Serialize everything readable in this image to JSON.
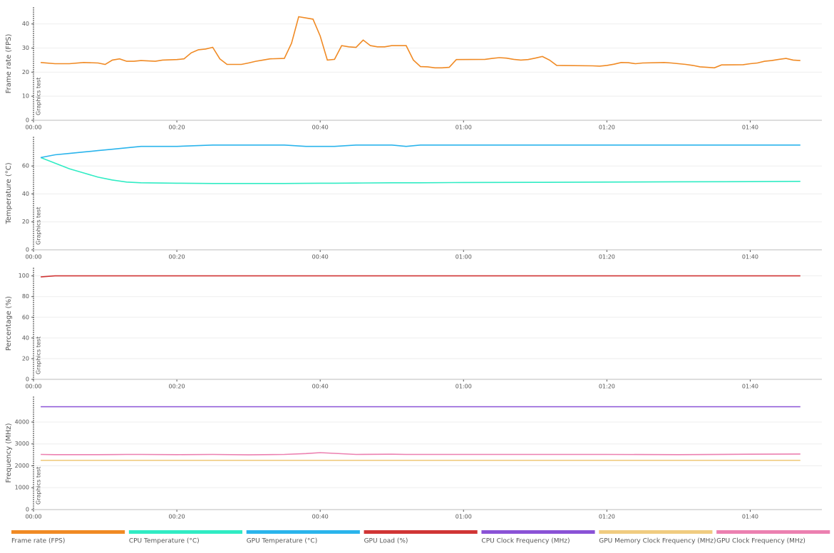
{
  "chart_data": [
    {
      "type": "line",
      "y_label": "Frame rate (FPS)",
      "annotation": "Graphics test",
      "legend": "bottom",
      "grid": true,
      "xlim": [
        0,
        110
      ],
      "xticks": [
        {
          "value": 0,
          "label": "00:00"
        },
        {
          "value": 20,
          "label": "00:20"
        },
        {
          "value": 40,
          "label": "00:40"
        },
        {
          "value": 60,
          "label": "01:00"
        },
        {
          "value": 80,
          "label": "01:20"
        },
        {
          "value": 100,
          "label": "01:40"
        }
      ],
      "ylim": [
        0,
        47
      ],
      "yticks": [
        0,
        10,
        20,
        30,
        40
      ],
      "x": [
        1,
        3,
        5,
        7,
        9,
        10,
        11,
        12,
        13,
        14,
        15,
        17,
        18,
        20,
        21,
        22,
        23,
        24,
        25,
        26,
        27,
        29,
        30,
        31,
        32,
        33,
        35,
        36,
        37,
        39,
        40,
        41,
        42,
        43,
        44,
        45,
        46,
        47,
        48,
        49,
        50,
        52,
        53,
        54,
        55,
        56,
        57,
        58,
        59,
        63,
        64,
        65,
        66,
        67,
        68,
        69,
        70,
        71,
        72,
        73,
        78,
        79,
        80,
        81,
        82,
        83,
        84,
        85,
        88,
        89,
        90,
        91,
        92,
        93,
        94,
        95,
        96,
        99,
        100,
        101,
        102,
        103,
        104,
        105,
        106,
        107
      ],
      "series": [
        {
          "name": "Frame rate (FPS)",
          "color": "#f08a24",
          "values": [
            24,
            23.5,
            23.5,
            24,
            23.8,
            23.2,
            25,
            25.5,
            24.5,
            24.5,
            24.8,
            24.5,
            25,
            25.2,
            25.5,
            28,
            29.3,
            29.6,
            30.3,
            25.5,
            23.2,
            23.2,
            23.8,
            24.5,
            25,
            25.5,
            25.7,
            32,
            43,
            42,
            35,
            25,
            25.3,
            31,
            30.5,
            30.3,
            33.3,
            31,
            30.5,
            30.5,
            31,
            31,
            25,
            22.3,
            22.2,
            21.8,
            21.8,
            22,
            25.2,
            25.3,
            25.7,
            26,
            25.8,
            25.3,
            25,
            25.2,
            25.8,
            26.5,
            25,
            22.8,
            22.6,
            22.5,
            22.8,
            23.3,
            24,
            23.9,
            23.5,
            23.8,
            24,
            23.8,
            23.5,
            23.2,
            22.8,
            22.2,
            22,
            21.8,
            23,
            23.1,
            23.5,
            23.8,
            24.5,
            24.8,
            25.3,
            25.7,
            25,
            24.8
          ]
        }
      ]
    },
    {
      "type": "line",
      "y_label": "Temperature (°C)",
      "annotation": "Graphics test",
      "legend": "bottom",
      "grid": true,
      "xlim": [
        0,
        110
      ],
      "xticks": [
        {
          "value": 0,
          "label": "00:00"
        },
        {
          "value": 20,
          "label": "00:20"
        },
        {
          "value": 40,
          "label": "00:40"
        },
        {
          "value": 60,
          "label": "01:00"
        },
        {
          "value": 80,
          "label": "01:20"
        },
        {
          "value": 100,
          "label": "01:40"
        }
      ],
      "ylim": [
        0,
        81
      ],
      "yticks": [
        0,
        20,
        40,
        60
      ],
      "x": [
        1,
        3,
        5,
        7,
        9,
        11,
        13,
        15,
        20,
        25,
        30,
        35,
        38,
        40,
        42,
        45,
        50,
        52,
        54,
        60,
        70,
        80,
        90,
        100,
        107
      ],
      "series": [
        {
          "name": "CPU Temperature (°C)",
          "color": "#30ecc4",
          "values": [
            66,
            62,
            58,
            55,
            52,
            50,
            48.5,
            48,
            47.7,
            47.5,
            47.5,
            47.5,
            47.6,
            47.7,
            47.7,
            47.8,
            48,
            48,
            48,
            48.2,
            48.3,
            48.5,
            48.7,
            48.8,
            49
          ]
        },
        {
          "name": "GPU Temperature (°C)",
          "color": "#2ab4ec",
          "values": [
            66,
            68,
            69,
            70,
            71,
            72,
            73,
            74,
            74,
            75,
            75,
            75,
            74,
            74,
            74,
            75,
            75,
            74,
            75,
            75,
            75,
            75,
            75,
            75,
            75
          ]
        }
      ]
    },
    {
      "type": "line",
      "y_label": "Percentage (%)",
      "annotation": "Graphics test",
      "legend": "bottom",
      "grid": true,
      "xlim": [
        0,
        110
      ],
      "xticks": [
        {
          "value": 0,
          "label": "00:00"
        },
        {
          "value": 20,
          "label": "00:20"
        },
        {
          "value": 40,
          "label": "00:40"
        },
        {
          "value": 60,
          "label": "01:00"
        },
        {
          "value": 80,
          "label": "01:20"
        },
        {
          "value": 100,
          "label": "01:40"
        }
      ],
      "ylim": [
        0,
        108
      ],
      "yticks": [
        0,
        20,
        40,
        60,
        80,
        100
      ],
      "x": [
        1,
        3,
        5,
        7,
        9,
        11,
        13,
        15,
        20,
        25,
        30,
        35,
        38,
        40,
        42,
        45,
        50,
        52,
        54,
        60,
        70,
        80,
        90,
        100,
        107
      ],
      "series": [
        {
          "name": "GPU Load (%)",
          "color": "#d03535",
          "values": [
            99,
            100,
            100,
            100,
            100,
            100,
            100,
            100,
            100,
            100,
            100,
            100,
            100,
            100,
            100,
            100,
            100,
            100,
            100,
            100,
            100,
            100,
            100,
            100,
            100
          ]
        }
      ]
    },
    {
      "type": "line",
      "y_label": "Frequency (MHz)",
      "annotation": "Graphics test",
      "legend": "bottom",
      "grid": true,
      "xlim": [
        0,
        110
      ],
      "xticks": [
        {
          "value": 0,
          "label": "00:00"
        },
        {
          "value": 20,
          "label": "00:20"
        },
        {
          "value": 40,
          "label": "00:40"
        },
        {
          "value": 60,
          "label": "01:00"
        },
        {
          "value": 80,
          "label": "01:20"
        },
        {
          "value": 100,
          "label": "01:40"
        }
      ],
      "ylim": [
        0,
        5170
      ],
      "yticks": [
        0,
        1000,
        2000,
        3000,
        4000
      ],
      "x": [
        1,
        3,
        5,
        7,
        9,
        11,
        13,
        15,
        20,
        25,
        30,
        35,
        38,
        40,
        42,
        45,
        50,
        52,
        54,
        60,
        70,
        80,
        90,
        100,
        107
      ],
      "series": [
        {
          "name": "CPU Clock Frequency (MHz)",
          "color": "#8a52d6",
          "values": [
            4700,
            4700,
            4700,
            4700,
            4700,
            4700,
            4700,
            4700,
            4700,
            4700,
            4700,
            4700,
            4700,
            4700,
            4700,
            4700,
            4700,
            4700,
            4700,
            4700,
            4700,
            4700,
            4700,
            4700,
            4700
          ]
        },
        {
          "name": "GPU Memory Clock Frequency (MHz)",
          "color": "#f0cc80",
          "values": [
            2250,
            2250,
            2250,
            2250,
            2250,
            2250,
            2250,
            2250,
            2250,
            2250,
            2250,
            2250,
            2250,
            2250,
            2250,
            2250,
            2250,
            2250,
            2250,
            2250,
            2250,
            2250,
            2250,
            2250,
            2250
          ]
        },
        {
          "name": "GPU Clock Frequency (MHz)",
          "color": "#ec80b0",
          "values": [
            2520,
            2510,
            2510,
            2510,
            2510,
            2515,
            2520,
            2520,
            2510,
            2520,
            2500,
            2520,
            2560,
            2600,
            2570,
            2520,
            2530,
            2520,
            2520,
            2520,
            2520,
            2520,
            2510,
            2530,
            2540
          ]
        }
      ]
    }
  ]
}
